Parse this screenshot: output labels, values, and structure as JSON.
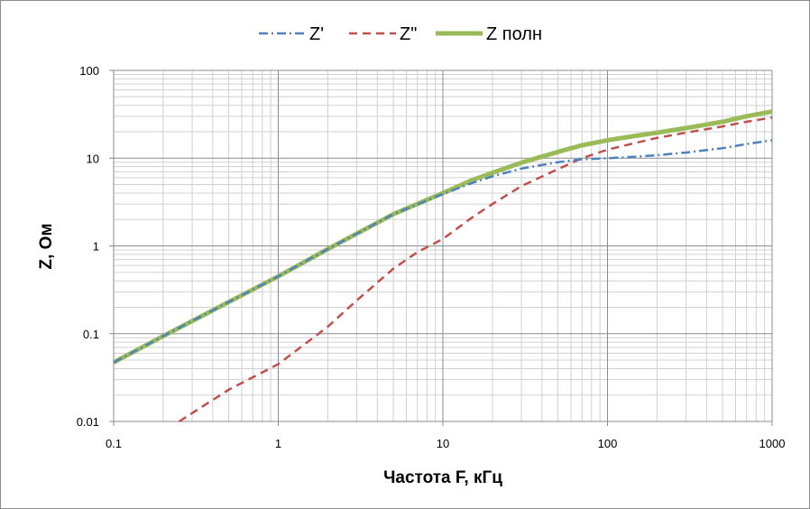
{
  "chart_data": {
    "type": "line",
    "title": "",
    "xlabel": "Частота  F, кГц",
    "ylabel": "Z,  Ом",
    "x_scale": "log",
    "y_scale": "log",
    "xlim": [
      0.1,
      1000
    ],
    "ylim": [
      0.01,
      100
    ],
    "x_ticks": [
      "0.1",
      "1",
      "10",
      "100",
      "1000"
    ],
    "y_ticks": [
      "0.01",
      "0.1",
      "1",
      "10",
      "100"
    ],
    "grid": true,
    "legend_position": "top",
    "series": [
      {
        "name": "Z'",
        "color": "#4f81bd",
        "dash": "dash-dot",
        "x": [
          0.1,
          0.2,
          0.5,
          1,
          2,
          5,
          10,
          15,
          20,
          30,
          50,
          70,
          100,
          150,
          200,
          300,
          500,
          700,
          1000
        ],
        "y": [
          0.047,
          0.094,
          0.23,
          0.45,
          0.92,
          2.3,
          3.9,
          5.2,
          6.2,
          7.6,
          9.0,
          9.7,
          10.0,
          10.4,
          10.8,
          11.6,
          13.0,
          14.5,
          16.0
        ]
      },
      {
        "name": "Z\"",
        "color": "#c0504d",
        "dash": "dash",
        "x": [
          0.25,
          0.5,
          1,
          2,
          3,
          5,
          7,
          10,
          15,
          20,
          30,
          50,
          70,
          100,
          150,
          200,
          300,
          500,
          700,
          1000
        ],
        "y": [
          0.01,
          0.023,
          0.045,
          0.12,
          0.24,
          0.55,
          0.85,
          1.2,
          2.1,
          3.0,
          4.8,
          7.5,
          10.0,
          12.5,
          15.0,
          17.0,
          19.5,
          23.0,
          26.0,
          29.0
        ]
      },
      {
        "name": "Z полн",
        "color": "#9bbb59",
        "dash": "solid",
        "x": [
          0.1,
          0.2,
          0.5,
          1,
          2,
          5,
          10,
          15,
          20,
          30,
          50,
          70,
          100,
          150,
          200,
          300,
          500,
          700,
          1000
        ],
        "y": [
          0.047,
          0.094,
          0.23,
          0.45,
          0.92,
          2.3,
          4.0,
          5.6,
          6.8,
          8.9,
          11.8,
          14.0,
          16.0,
          18.0,
          19.5,
          22.0,
          26.0,
          30.0,
          34.0
        ]
      }
    ]
  }
}
